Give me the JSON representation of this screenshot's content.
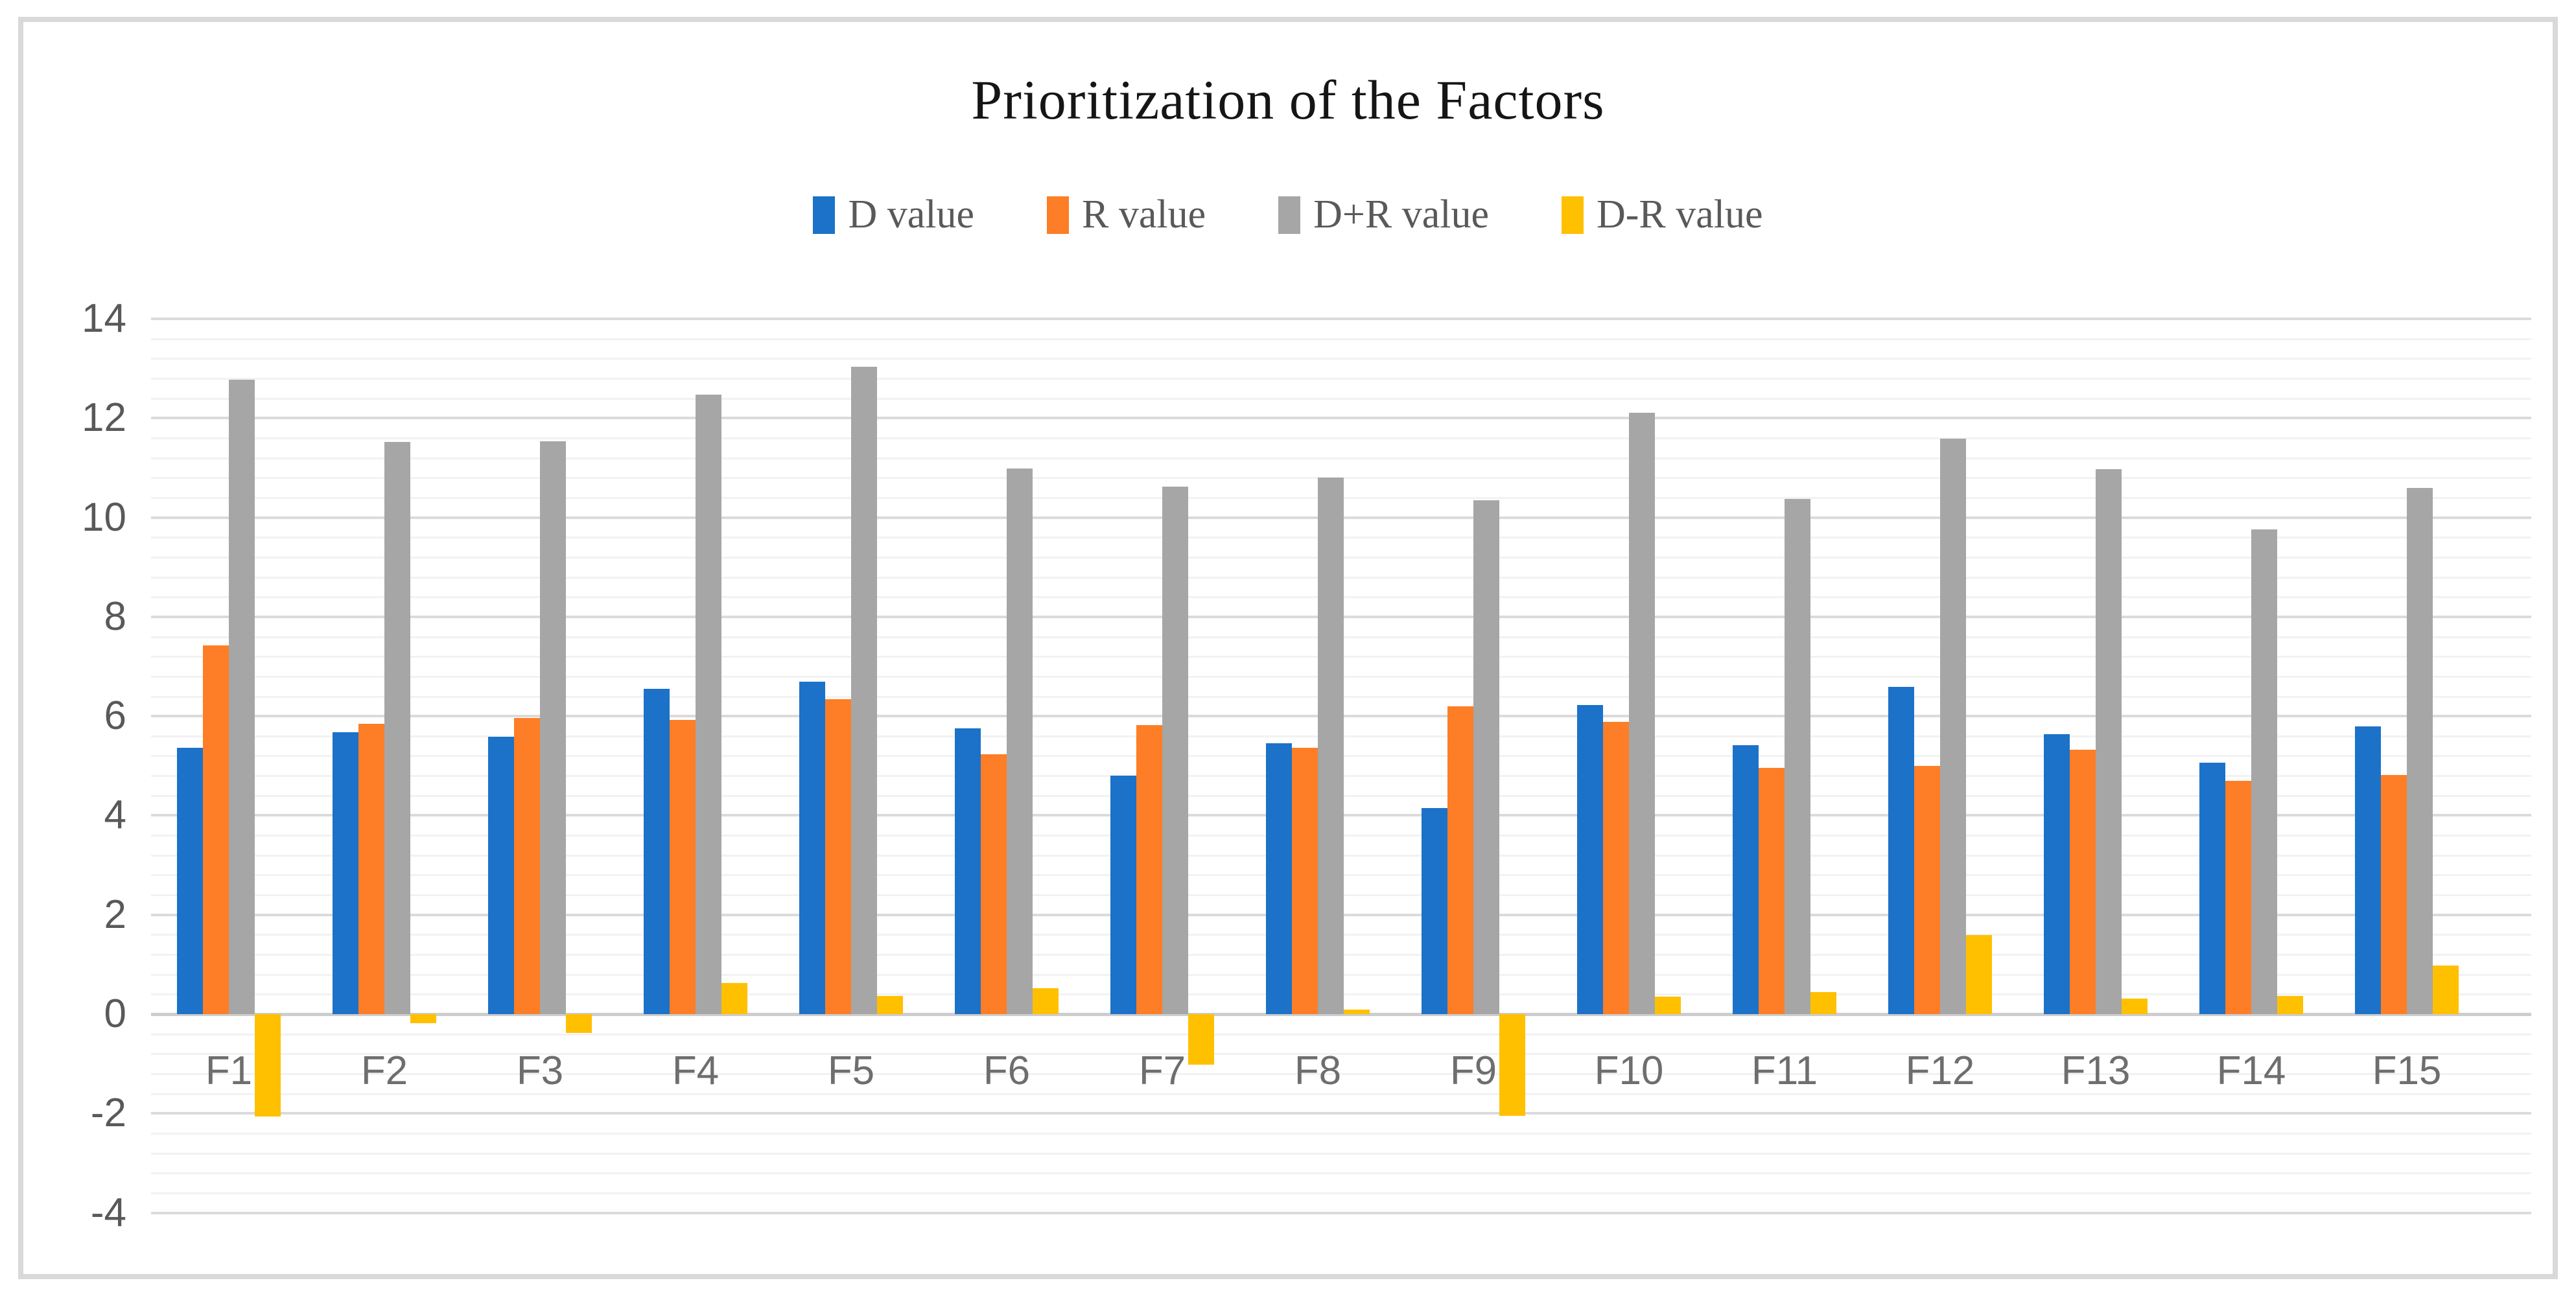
{
  "title": "Prioritization of the Factors",
  "colors": {
    "d_value": "#1B72C8",
    "r_value": "#FD7E26",
    "dr_sum": "#A6A6A6",
    "dr_diff": "#FFC000",
    "frame_border": "#D9D9D9",
    "grid_major": "#DBDBDB",
    "grid_minor": "#F2F2F2",
    "axis_text": "#595959",
    "title_text": "#151515"
  },
  "legend": {
    "position": "top",
    "items": [
      {
        "label": "D value",
        "color": "#1B72C8"
      },
      {
        "label": "R value",
        "color": "#FD7E26"
      },
      {
        "label": "D+R value",
        "color": "#A6A6A6"
      },
      {
        "label": "D-R value",
        "color": "#FFC000"
      }
    ]
  },
  "y_axis": {
    "tick_labels": [
      "14",
      "12",
      "10",
      "8",
      "6",
      "4",
      "2",
      "0",
      "-2",
      "-4"
    ],
    "max": 14,
    "min": -4,
    "major_unit": 2,
    "minor_unit": 0.4
  },
  "chart_data": {
    "type": "bar",
    "title": "Prioritization of the Factors",
    "xlabel": "",
    "ylabel": "",
    "ylim": [
      -4,
      14
    ],
    "grid": "on",
    "legend_position": "top",
    "categories": [
      "F1",
      "F2",
      "F3",
      "F4",
      "F5",
      "F6",
      "F7",
      "F8",
      "F9",
      "F10",
      "F11",
      "F12",
      "F13",
      "F14",
      "F15"
    ],
    "series": [
      {
        "name": "D value",
        "color": "#1B72C8",
        "values": [
          5.36,
          5.67,
          5.58,
          6.55,
          6.7,
          5.75,
          4.8,
          5.45,
          4.15,
          6.23,
          5.41,
          6.59,
          5.64,
          5.06,
          5.79
        ]
      },
      {
        "name": "R value",
        "color": "#FD7E26",
        "values": [
          7.42,
          5.85,
          5.96,
          5.93,
          6.34,
          5.23,
          5.82,
          5.36,
          6.2,
          5.88,
          4.96,
          5.0,
          5.33,
          4.7,
          4.81
        ]
      },
      {
        "name": "D+R value",
        "color": "#A6A6A6",
        "values": [
          12.78,
          11.52,
          11.54,
          12.48,
          13.04,
          10.98,
          10.62,
          10.81,
          10.35,
          12.11,
          10.37,
          11.59,
          10.97,
          9.76,
          10.6
        ]
      },
      {
        "name": "D-R value",
        "color": "#FFC000",
        "values": [
          -2.06,
          -0.18,
          -0.38,
          0.62,
          0.36,
          0.52,
          -1.02,
          0.09,
          -2.05,
          0.35,
          0.45,
          1.59,
          0.31,
          0.36,
          0.98
        ]
      }
    ]
  }
}
